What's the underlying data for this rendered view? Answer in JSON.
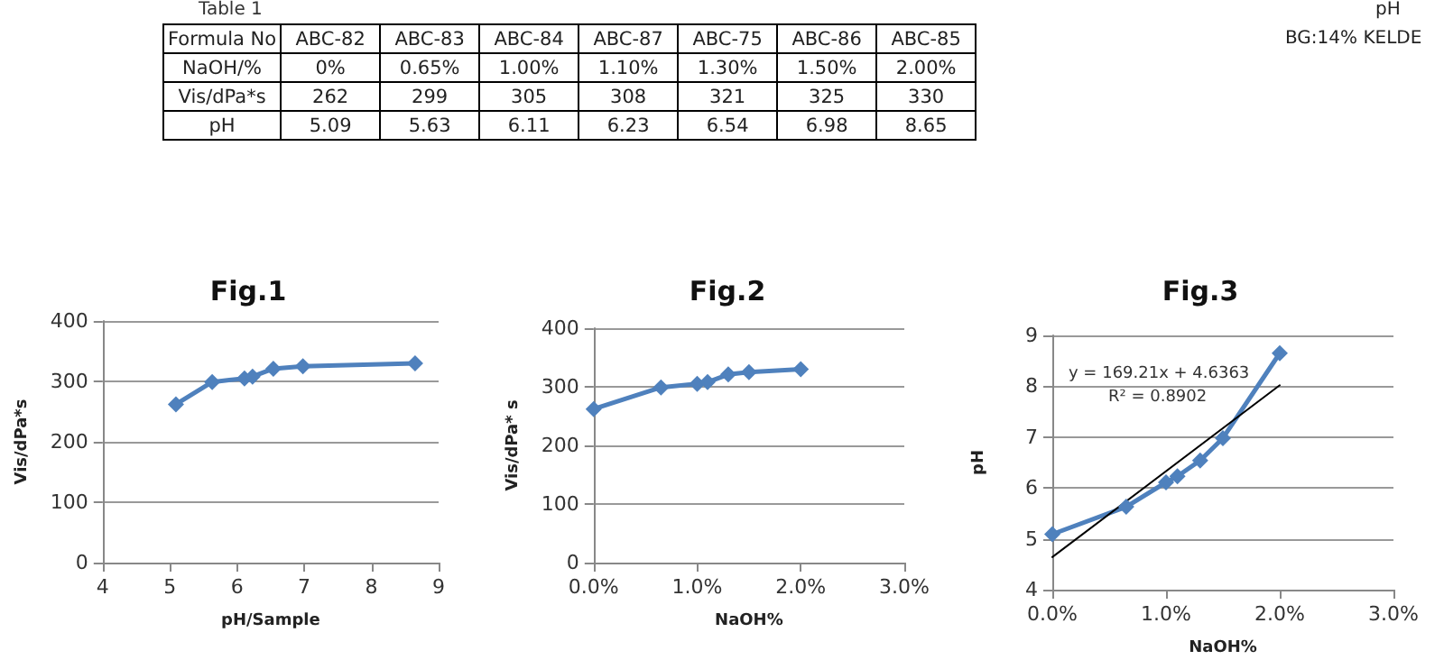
{
  "chart_data": [
    {
      "type": "other",
      "title": "Table 1",
      "xlabel": "Formula No",
      "categories": [
        "ABC-82",
        "ABC-83",
        "ABC-84",
        "ABC-87",
        "ABC-75",
        "ABC-86",
        "ABC-85"
      ],
      "series": [
        {
          "name": "NaOH/%",
          "values": [
            0,
            0.65,
            1,
            1.1,
            1.3,
            1.5,
            2
          ],
          "value_labels": [
            "0%",
            "0.65%",
            "1.00%",
            "1.10%",
            "1.30%",
            "1.50%",
            "2.00%"
          ]
        },
        {
          "name": "Vis/dPa*s",
          "values": [
            262,
            299,
            305,
            308,
            321,
            325,
            330
          ],
          "value_labels": [
            "262",
            "299",
            "305",
            "308",
            "321",
            "325",
            "330"
          ]
        },
        {
          "name": "pH",
          "values": [
            5.09,
            5.63,
            6.11,
            6.23,
            6.54,
            6.98,
            8.65
          ],
          "value_labels": [
            "5.09",
            "5.63",
            "6.11",
            "6.23",
            "6.54",
            "6.98",
            "8.65"
          ]
        }
      ],
      "annotations": [
        "pH",
        "BG:14% KELDE"
      ]
    },
    {
      "type": "line",
      "title": "Fig.1",
      "xlabel": "pH/Sample",
      "ylabel": "Vis/dPa*s",
      "x": [
        5.09,
        5.63,
        6.11,
        6.23,
        6.54,
        6.98,
        8.65
      ],
      "series": [
        {
          "color": "#4f81bd",
          "values": [
            262,
            299,
            305,
            308,
            321,
            325,
            330
          ]
        }
      ],
      "xlim": [
        4,
        9
      ],
      "xticks": [
        4,
        5,
        6,
        7,
        8,
        9
      ],
      "ylim": [
        0,
        400
      ],
      "yticks": [
        0,
        100,
        200,
        300,
        400
      ],
      "grid": "y",
      "marker": "diamond",
      "line_style": "solid"
    },
    {
      "type": "line",
      "title": "Fig.2",
      "xlabel": "NaOH%",
      "ylabel": "Vis/dPa* s",
      "x": [
        0,
        0.65,
        1,
        1.1,
        1.3,
        1.5,
        2
      ],
      "series": [
        {
          "color": "#4f81bd",
          "values": [
            262,
            299,
            305,
            308,
            321,
            325,
            330
          ]
        }
      ],
      "xlim": [
        0,
        3
      ],
      "xticks": [
        {
          "value": 0,
          "label": "0.0%"
        },
        {
          "value": 1,
          "label": "1.0%"
        },
        {
          "value": 2,
          "label": "2.0%"
        },
        {
          "value": 3,
          "label": "3.0%"
        }
      ],
      "ylim": [
        0,
        400
      ],
      "yticks": [
        0,
        100,
        200,
        300,
        400
      ],
      "grid": "y",
      "marker": "diamond",
      "line_style": "solid"
    },
    {
      "type": "line",
      "title": "Fig.3",
      "xlabel": "NaOH%",
      "ylabel": "pH",
      "x": [
        0,
        0.65,
        1,
        1.1,
        1.3,
        1.5,
        2
      ],
      "series": [
        {
          "color": "#4f81bd",
          "values": [
            5.09,
            5.63,
            6.11,
            6.23,
            6.54,
            6.98,
            8.65
          ]
        },
        {
          "color": "#000000",
          "x": [
            0,
            2
          ],
          "values": [
            4.64,
            8.02
          ],
          "marker": "none"
        }
      ],
      "xlim": [
        0,
        3
      ],
      "xticks": [
        {
          "value": 0,
          "label": "0.0%"
        },
        {
          "value": 1,
          "label": "1.0%"
        },
        {
          "value": 2,
          "label": "2.0%"
        },
        {
          "value": 3,
          "label": "3.0%"
        }
      ],
      "ylim": [
        4,
        9
      ],
      "yticks": [
        4,
        5,
        6,
        7,
        8,
        9
      ],
      "grid": "y",
      "marker": "diamond",
      "line_style": "solid",
      "annotations": [
        "y = 169.21x + 4.6363",
        "R² = 0.8902"
      ]
    }
  ]
}
